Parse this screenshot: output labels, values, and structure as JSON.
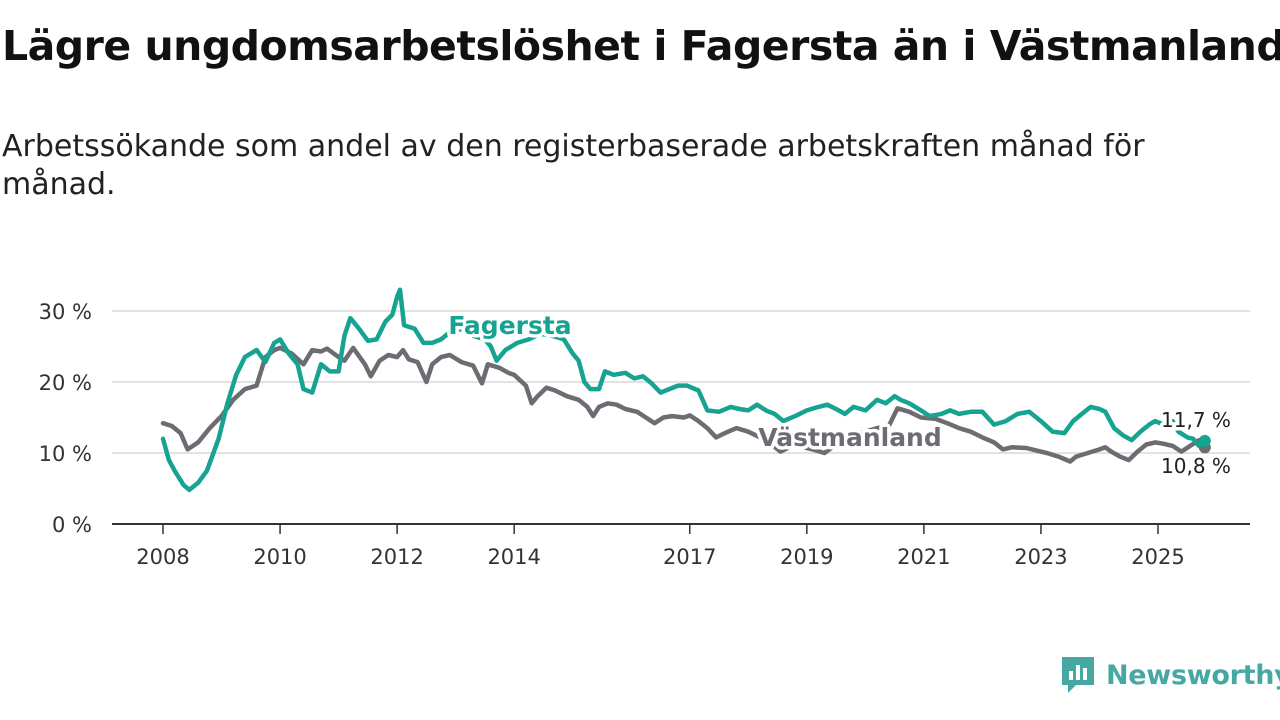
{
  "title": "Lägre ungdomsarbetslöshet i Fagersta än i Västmanland",
  "subtitle": "Arbetssökande som andel av den registerbaserade arbetskraften månad för månad.",
  "brand": {
    "name": "Newsworthy",
    "icon": "newsworthy-logo-icon",
    "color": "#46a8a3"
  },
  "colors": {
    "fagersta": "#17a392",
    "vastmanland": "#6e6b73",
    "grid": "#d9d9d9",
    "axis": "#333333"
  },
  "chart_data": {
    "type": "line",
    "title": "Lägre ungdomsarbetslöshet i Fagersta än i Västmanland",
    "xlabel": "",
    "ylabel": "",
    "xlim": [
      2008,
      2026.2
    ],
    "ylim": [
      0,
      33
    ],
    "y_ticks": [
      0,
      10,
      20,
      30
    ],
    "y_tick_labels": [
      "0 %",
      "10 %",
      "20 %",
      "30 %"
    ],
    "x_ticks": [
      2008,
      2010,
      2012,
      2014,
      2017,
      2019,
      2021,
      2023,
      2025
    ],
    "x_tick_labels": [
      "2008",
      "2010",
      "2012",
      "2014",
      "2017",
      "2019",
      "2021",
      "2023",
      "2025"
    ],
    "series": [
      {
        "name": "Västmanland",
        "label": "Västmanland",
        "end_label": "10,8 %",
        "color": "#6e6b73",
        "points": [
          [
            2008.0,
            14.2
          ],
          [
            2008.15,
            13.8
          ],
          [
            2008.3,
            12.8
          ],
          [
            2008.42,
            10.5
          ],
          [
            2008.6,
            11.5
          ],
          [
            2008.8,
            13.5
          ],
          [
            2009.0,
            15.2
          ],
          [
            2009.2,
            17.5
          ],
          [
            2009.4,
            19.0
          ],
          [
            2009.6,
            19.5
          ],
          [
            2009.75,
            23.5
          ],
          [
            2009.9,
            24.5
          ],
          [
            2010.0,
            24.8
          ],
          [
            2010.2,
            24.0
          ],
          [
            2010.4,
            22.5
          ],
          [
            2010.55,
            24.5
          ],
          [
            2010.7,
            24.3
          ],
          [
            2010.8,
            24.7
          ],
          [
            2011.0,
            23.5
          ],
          [
            2011.1,
            23.0
          ],
          [
            2011.25,
            24.8
          ],
          [
            2011.45,
            22.5
          ],
          [
            2011.55,
            20.8
          ],
          [
            2011.7,
            23.0
          ],
          [
            2011.85,
            23.8
          ],
          [
            2012.0,
            23.5
          ],
          [
            2012.1,
            24.5
          ],
          [
            2012.2,
            23.2
          ],
          [
            2012.35,
            22.8
          ],
          [
            2012.5,
            20.0
          ],
          [
            2012.6,
            22.5
          ],
          [
            2012.75,
            23.5
          ],
          [
            2012.9,
            23.8
          ],
          [
            2013.1,
            22.8
          ],
          [
            2013.3,
            22.3
          ],
          [
            2013.45,
            19.8
          ],
          [
            2013.55,
            22.5
          ],
          [
            2013.75,
            22.0
          ],
          [
            2013.9,
            21.3
          ],
          [
            2014.0,
            21.0
          ],
          [
            2014.2,
            19.5
          ],
          [
            2014.3,
            17.0
          ],
          [
            2014.4,
            18.0
          ],
          [
            2014.55,
            19.2
          ],
          [
            2014.7,
            18.8
          ],
          [
            2014.9,
            18.0
          ],
          [
            2015.1,
            17.5
          ],
          [
            2015.25,
            16.5
          ],
          [
            2015.35,
            15.2
          ],
          [
            2015.45,
            16.5
          ],
          [
            2015.6,
            17.0
          ],
          [
            2015.75,
            16.8
          ],
          [
            2015.9,
            16.2
          ],
          [
            2016.1,
            15.8
          ],
          [
            2016.25,
            15.0
          ],
          [
            2016.4,
            14.2
          ],
          [
            2016.55,
            15.0
          ],
          [
            2016.7,
            15.2
          ],
          [
            2016.9,
            15.0
          ],
          [
            2017.0,
            15.3
          ],
          [
            2017.15,
            14.5
          ],
          [
            2017.3,
            13.5
          ],
          [
            2017.45,
            12.2
          ],
          [
            2017.6,
            12.8
          ],
          [
            2017.8,
            13.5
          ],
          [
            2018.0,
            13.0
          ],
          [
            2018.2,
            12.2
          ],
          [
            2018.4,
            11.2
          ],
          [
            2018.55,
            10.2
          ],
          [
            2018.75,
            11.0
          ],
          [
            2018.95,
            10.8
          ],
          [
            2019.1,
            10.5
          ],
          [
            2019.3,
            10.0
          ],
          [
            2019.5,
            11.2
          ],
          [
            2019.65,
            12.0
          ],
          [
            2019.8,
            12.5
          ],
          [
            2020.0,
            13.0
          ],
          [
            2020.2,
            13.5
          ],
          [
            2020.4,
            13.8
          ],
          [
            2020.55,
            16.3
          ],
          [
            2020.75,
            15.8
          ],
          [
            2020.95,
            15.0
          ],
          [
            2021.2,
            14.8
          ],
          [
            2021.4,
            14.2
          ],
          [
            2021.6,
            13.5
          ],
          [
            2021.8,
            13.0
          ],
          [
            2022.0,
            12.2
          ],
          [
            2022.2,
            11.5
          ],
          [
            2022.35,
            10.5
          ],
          [
            2022.5,
            10.8
          ],
          [
            2022.75,
            10.7
          ],
          [
            2022.9,
            10.4
          ],
          [
            2023.1,
            10.0
          ],
          [
            2023.3,
            9.5
          ],
          [
            2023.5,
            8.8
          ],
          [
            2023.6,
            9.5
          ],
          [
            2023.8,
            10.0
          ],
          [
            2024.0,
            10.5
          ],
          [
            2024.1,
            10.8
          ],
          [
            2024.2,
            10.2
          ],
          [
            2024.35,
            9.5
          ],
          [
            2024.5,
            9.0
          ],
          [
            2024.65,
            10.2
          ],
          [
            2024.8,
            11.2
          ],
          [
            2024.95,
            11.5
          ],
          [
            2025.1,
            11.3
          ],
          [
            2025.25,
            11.0
          ],
          [
            2025.4,
            10.2
          ],
          [
            2025.55,
            11.0
          ],
          [
            2025.7,
            11.8
          ],
          [
            2025.8,
            10.8
          ]
        ]
      },
      {
        "name": "Fagersta",
        "label": "Fagersta",
        "end_label": "11,7 %",
        "color": "#17a392",
        "points": [
          [
            2008.0,
            12.0
          ],
          [
            2008.1,
            9.0
          ],
          [
            2008.2,
            7.5
          ],
          [
            2008.35,
            5.5
          ],
          [
            2008.45,
            4.8
          ],
          [
            2008.6,
            5.8
          ],
          [
            2008.75,
            7.5
          ],
          [
            2008.95,
            12.0
          ],
          [
            2009.1,
            17.0
          ],
          [
            2009.25,
            21.0
          ],
          [
            2009.4,
            23.5
          ],
          [
            2009.6,
            24.5
          ],
          [
            2009.75,
            22.8
          ],
          [
            2009.9,
            25.5
          ],
          [
            2010.0,
            26.0
          ],
          [
            2010.15,
            24.0
          ],
          [
            2010.3,
            22.5
          ],
          [
            2010.4,
            19.0
          ],
          [
            2010.55,
            18.5
          ],
          [
            2010.7,
            22.5
          ],
          [
            2010.85,
            21.5
          ],
          [
            2011.0,
            21.5
          ],
          [
            2011.1,
            26.5
          ],
          [
            2011.2,
            29.0
          ],
          [
            2011.35,
            27.5
          ],
          [
            2011.5,
            25.8
          ],
          [
            2011.65,
            26.0
          ],
          [
            2011.8,
            28.5
          ],
          [
            2011.92,
            29.5
          ],
          [
            2012.0,
            32.0
          ],
          [
            2012.05,
            33.0
          ],
          [
            2012.12,
            28.0
          ],
          [
            2012.3,
            27.5
          ],
          [
            2012.45,
            25.5
          ],
          [
            2012.6,
            25.5
          ],
          [
            2012.75,
            26.0
          ],
          [
            2012.9,
            27.0
          ],
          [
            2013.1,
            27.5
          ],
          [
            2013.3,
            26.5
          ],
          [
            2013.5,
            26.0
          ],
          [
            2013.6,
            25.0
          ],
          [
            2013.7,
            23.0
          ],
          [
            2013.85,
            24.5
          ],
          [
            2014.05,
            25.5
          ],
          [
            2014.25,
            26.0
          ],
          [
            2014.45,
            26.8
          ],
          [
            2014.65,
            26.5
          ],
          [
            2014.85,
            26.0
          ],
          [
            2015.0,
            24.0
          ],
          [
            2015.1,
            23.0
          ],
          [
            2015.2,
            20.0
          ],
          [
            2015.3,
            19.0
          ],
          [
            2015.45,
            19.0
          ],
          [
            2015.55,
            21.5
          ],
          [
            2015.7,
            21.0
          ],
          [
            2015.9,
            21.3
          ],
          [
            2016.05,
            20.5
          ],
          [
            2016.2,
            20.8
          ],
          [
            2016.35,
            19.8
          ],
          [
            2016.5,
            18.5
          ],
          [
            2016.65,
            19.0
          ],
          [
            2016.8,
            19.5
          ],
          [
            2016.95,
            19.5
          ],
          [
            2017.15,
            18.8
          ],
          [
            2017.3,
            16.0
          ],
          [
            2017.5,
            15.8
          ],
          [
            2017.7,
            16.5
          ],
          [
            2017.85,
            16.2
          ],
          [
            2018.0,
            16.0
          ],
          [
            2018.15,
            16.8
          ],
          [
            2018.3,
            16.0
          ],
          [
            2018.45,
            15.5
          ],
          [
            2018.6,
            14.5
          ],
          [
            2018.8,
            15.2
          ],
          [
            2019.0,
            16.0
          ],
          [
            2019.2,
            16.5
          ],
          [
            2019.35,
            16.8
          ],
          [
            2019.5,
            16.2
          ],
          [
            2019.65,
            15.5
          ],
          [
            2019.8,
            16.5
          ],
          [
            2020.0,
            16.0
          ],
          [
            2020.2,
            17.5
          ],
          [
            2020.35,
            17.0
          ],
          [
            2020.5,
            18.0
          ],
          [
            2020.6,
            17.5
          ],
          [
            2020.75,
            17.0
          ],
          [
            2020.95,
            16.0
          ],
          [
            2021.1,
            15.2
          ],
          [
            2021.3,
            15.5
          ],
          [
            2021.45,
            16.0
          ],
          [
            2021.6,
            15.5
          ],
          [
            2021.8,
            15.8
          ],
          [
            2022.0,
            15.8
          ],
          [
            2022.2,
            14.0
          ],
          [
            2022.4,
            14.5
          ],
          [
            2022.6,
            15.5
          ],
          [
            2022.8,
            15.8
          ],
          [
            2023.0,
            14.5
          ],
          [
            2023.2,
            13.0
          ],
          [
            2023.4,
            12.8
          ],
          [
            2023.55,
            14.5
          ],
          [
            2023.7,
            15.5
          ],
          [
            2023.85,
            16.5
          ],
          [
            2024.0,
            16.2
          ],
          [
            2024.1,
            15.8
          ],
          [
            2024.25,
            13.5
          ],
          [
            2024.4,
            12.5
          ],
          [
            2024.55,
            11.8
          ],
          [
            2024.7,
            13.0
          ],
          [
            2024.85,
            14.0
          ],
          [
            2024.95,
            14.5
          ],
          [
            2025.1,
            14.0
          ],
          [
            2025.25,
            14.5
          ],
          [
            2025.35,
            13.0
          ],
          [
            2025.5,
            12.2
          ],
          [
            2025.6,
            12.0
          ],
          [
            2025.7,
            11.0
          ],
          [
            2025.8,
            11.7
          ]
        ]
      }
    ]
  }
}
